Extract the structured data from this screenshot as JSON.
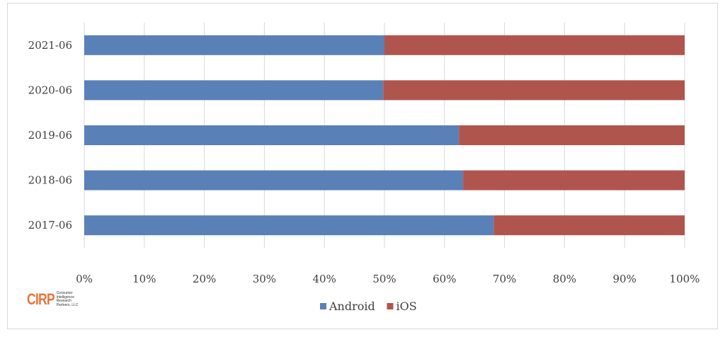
{
  "chart_data": {
    "type": "bar",
    "orientation": "horizontal",
    "stacked": "percent",
    "categories": [
      "2021-06",
      "2020-06",
      "2019-06",
      "2018-06",
      "2017-06"
    ],
    "series": [
      {
        "name": "Android",
        "color": "#5a80b8",
        "values": [
          50.0,
          49.8,
          62.4,
          63.1,
          68.2
        ]
      },
      {
        "name": "iOS",
        "color": "#b0554d",
        "values": [
          50.0,
          50.2,
          37.6,
          36.9,
          31.8
        ]
      }
    ],
    "xlim": [
      0,
      100
    ],
    "xticks": [
      "0%",
      "10%",
      "20%",
      "30%",
      "40%",
      "50%",
      "60%",
      "70%",
      "80%",
      "90%",
      "100%"
    ],
    "grid": true,
    "legend": "bottom"
  },
  "logo": {
    "mark": "CIRP",
    "lines": [
      "Consumer",
      "Intelligence",
      "Research",
      "Partners, LLC"
    ]
  }
}
